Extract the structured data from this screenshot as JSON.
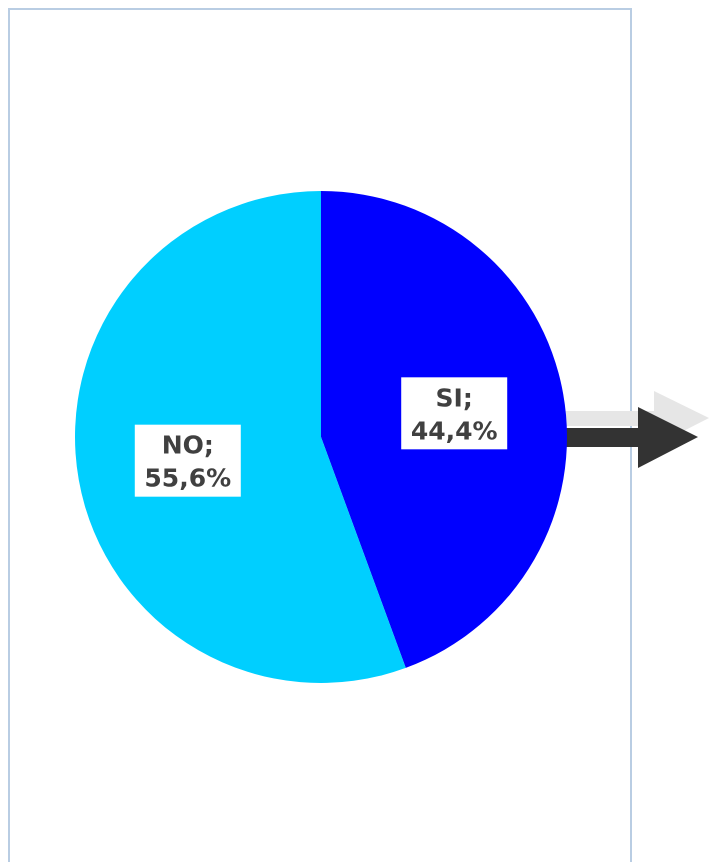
{
  "chart_data": {
    "type": "pie",
    "categories": [
      "SI",
      "NO"
    ],
    "values": [
      44.4,
      55.6
    ],
    "value_labels": [
      "44,4%",
      "55,6%"
    ],
    "category_labels": [
      "SI;",
      "NO;"
    ],
    "colors": [
      "#0000ff",
      "#00cfff"
    ],
    "unit": "%",
    "legend": "none"
  },
  "arrow": {
    "color": "#333333",
    "shadow_color": "#e6e6e6",
    "icon": "arrow-right-icon"
  },
  "frame": {
    "border_color": "#b9cde3"
  }
}
